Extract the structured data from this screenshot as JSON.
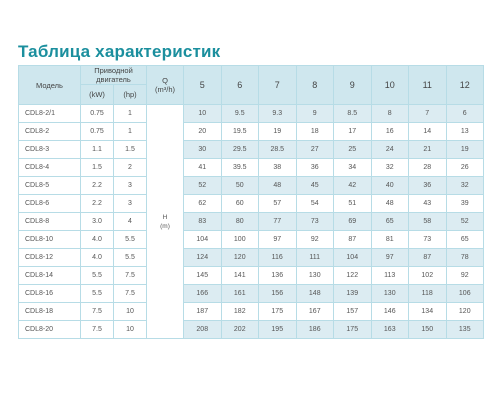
{
  "title": "Таблица характеристик",
  "header": {
    "model": "Модель",
    "drive": "Приводной двигатель",
    "kw": "(kW)",
    "hp": "(hp)",
    "q": "Q",
    "q_unit": "(m³/h)",
    "flows": [
      "5",
      "6",
      "7",
      "8",
      "9",
      "10",
      "11",
      "12"
    ]
  },
  "h_label": "H",
  "h_unit": "(m)",
  "rows": [
    {
      "model": "CDL8-2/1",
      "kw": "0.75",
      "hp": "1",
      "values": [
        "10",
        "9.5",
        "9.3",
        "9",
        "8.5",
        "8",
        "7",
        "6"
      ]
    },
    {
      "model": "CDL8-2",
      "kw": "0.75",
      "hp": "1",
      "values": [
        "20",
        "19.5",
        "19",
        "18",
        "17",
        "16",
        "14",
        "13"
      ]
    },
    {
      "model": "CDL8-3",
      "kw": "1.1",
      "hp": "1.5",
      "values": [
        "30",
        "29.5",
        "28.5",
        "27",
        "25",
        "24",
        "21",
        "19"
      ]
    },
    {
      "model": "CDL8-4",
      "kw": "1.5",
      "hp": "2",
      "values": [
        "41",
        "39.5",
        "38",
        "36",
        "34",
        "32",
        "28",
        "26"
      ]
    },
    {
      "model": "CDL8-5",
      "kw": "2.2",
      "hp": "3",
      "values": [
        "52",
        "50",
        "48",
        "45",
        "42",
        "40",
        "36",
        "32"
      ]
    },
    {
      "model": "CDL8-6",
      "kw": "2.2",
      "hp": "3",
      "values": [
        "62",
        "60",
        "57",
        "54",
        "51",
        "48",
        "43",
        "39"
      ]
    },
    {
      "model": "CDL8-8",
      "kw": "3.0",
      "hp": "4",
      "values": [
        "83",
        "80",
        "77",
        "73",
        "69",
        "65",
        "58",
        "52"
      ]
    },
    {
      "model": "CDL8-10",
      "kw": "4.0",
      "hp": "5.5",
      "values": [
        "104",
        "100",
        "97",
        "92",
        "87",
        "81",
        "73",
        "65"
      ]
    },
    {
      "model": "CDL8-12",
      "kw": "4.0",
      "hp": "5.5",
      "values": [
        "124",
        "120",
        "116",
        "111",
        "104",
        "97",
        "87",
        "78"
      ]
    },
    {
      "model": "CDL8-14",
      "kw": "5.5",
      "hp": "7.5",
      "values": [
        "145",
        "141",
        "136",
        "130",
        "122",
        "113",
        "102",
        "92"
      ]
    },
    {
      "model": "CDL8-16",
      "kw": "5.5",
      "hp": "7.5",
      "values": [
        "166",
        "161",
        "156",
        "148",
        "139",
        "130",
        "118",
        "106"
      ]
    },
    {
      "model": "CDL8-18",
      "kw": "7.5",
      "hp": "10",
      "values": [
        "187",
        "182",
        "175",
        "167",
        "157",
        "146",
        "134",
        "120"
      ]
    },
    {
      "model": "CDL8-20",
      "kw": "7.5",
      "hp": "10",
      "values": [
        "208",
        "202",
        "195",
        "186",
        "175",
        "163",
        "150",
        "135"
      ]
    }
  ]
}
